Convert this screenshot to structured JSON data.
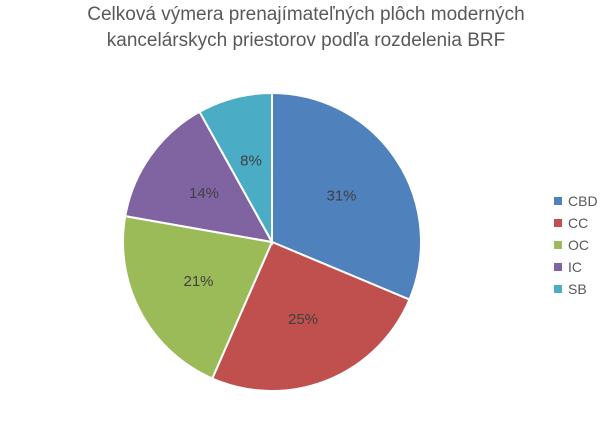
{
  "chart_data": {
    "type": "pie",
    "title_lines": [
      "Celková výmera prenajímateľných plôch moderných",
      "kancelárskych priestorov podľa rozdelenia BRF"
    ],
    "categories": [
      "CBD",
      "CC",
      "OC",
      "IC",
      "SB"
    ],
    "values": [
      31,
      25,
      21,
      14,
      8
    ],
    "labels": [
      "31%",
      "25%",
      "21%",
      "14%",
      "8%"
    ],
    "colors": [
      "#4F81BD",
      "#C0504D",
      "#9BBB59",
      "#8064A2",
      "#4BACC6"
    ],
    "start_angle": "12 o'clock",
    "direction": "clockwise",
    "legend_position": "right"
  }
}
